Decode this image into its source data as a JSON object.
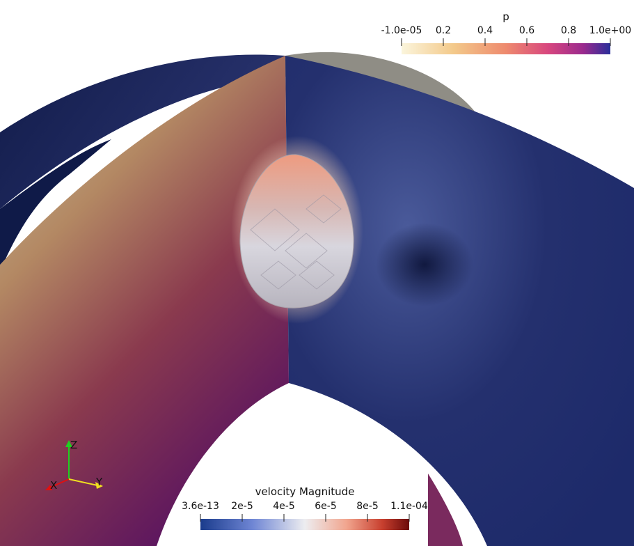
{
  "pressure_colorbar": {
    "title": "p",
    "ticks": [
      "-1.0e-05",
      "0.2",
      "0.4",
      "0.6",
      "0.8",
      "1.0e+00"
    ],
    "colors": [
      "#fbf5dc",
      "#f3c98a",
      "#ee8a6e",
      "#d8477e",
      "#9a2a8e",
      "#2a2e9a"
    ]
  },
  "velocity_colorbar": {
    "title": "velocity Magnitude",
    "ticks": [
      "3.6e-13",
      "2e-5",
      "4e-5",
      "6e-5",
      "8e-5",
      "1.1e-04"
    ],
    "colors": [
      "#1a3b8c",
      "#6f86d4",
      "#ededf0",
      "#f1a58e",
      "#c8402f",
      "#6b0a0a"
    ]
  },
  "orientation_axes": {
    "x_label": "X",
    "y_label": "Y",
    "z_label": "Z",
    "x_color": "#e01010",
    "y_color": "#f0e020",
    "z_color": "#20d020"
  }
}
